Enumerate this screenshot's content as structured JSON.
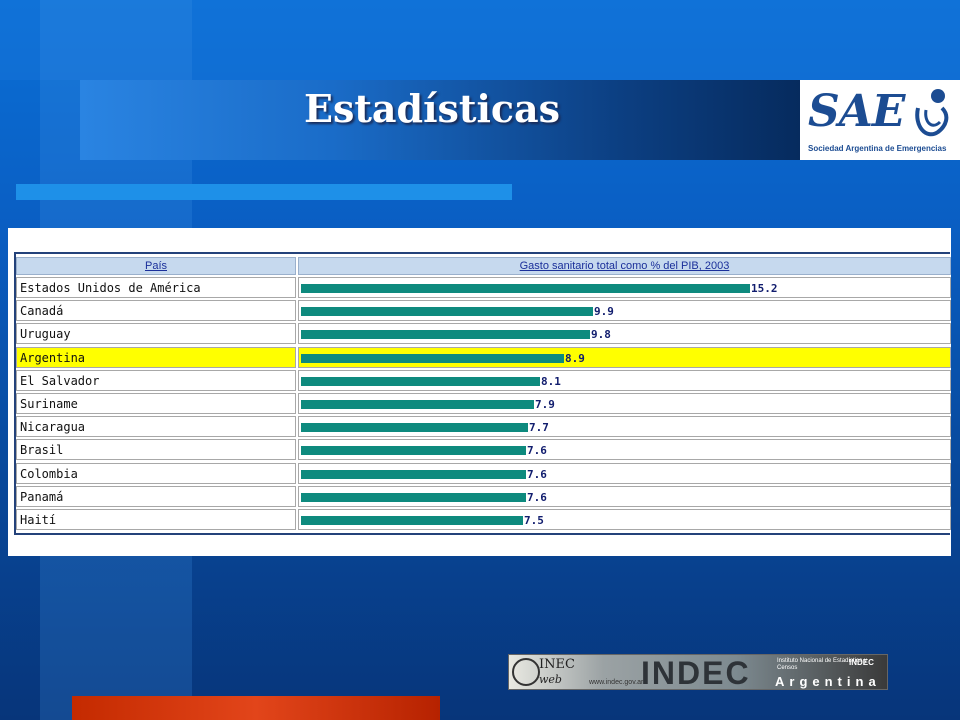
{
  "slide": {
    "title": "Estadísticas"
  },
  "logos": {
    "sae": {
      "wordmark": "SAE",
      "subtitle": "Sociedad Argentina de Emergencias"
    },
    "indec": {
      "small_wordmark": "INEC",
      "web_text": "web",
      "big_wordmark": "INDEC",
      "url": "www.indec.gov.ar",
      "institute": "Instituto Nacional de Estadística y Censos",
      "tag": "INDEC",
      "country": "Argentina"
    }
  },
  "colors": {
    "bar": "#0e8a7e",
    "highlight_row": "#ffff00",
    "header_bg": "#c6d9ee",
    "header_text": "#1a2f9a",
    "value_label": "#111d6e"
  },
  "chart_data": {
    "type": "bar",
    "orientation": "horizontal",
    "column_headers": [
      "País",
      "Gasto sanitario total como % del PIB, 2003"
    ],
    "categories": [
      "Estados Unidos de América",
      "Canadá",
      "Uruguay",
      "Argentina",
      "El Salvador",
      "Suriname",
      "Nicaragua",
      "Brasil",
      "Colombia",
      "Panamá",
      "Haití"
    ],
    "values": [
      15.2,
      9.9,
      9.8,
      8.9,
      8.1,
      7.9,
      7.7,
      7.6,
      7.6,
      7.6,
      7.5
    ],
    "value_labels": [
      "15.2",
      "9.9",
      "9.8",
      "8.9",
      "8.1",
      "7.9",
      "7.7",
      "7.6",
      "7.6",
      "7.6",
      "7.5"
    ],
    "highlighted_category": "Argentina",
    "xlim": [
      0,
      15.2
    ]
  }
}
